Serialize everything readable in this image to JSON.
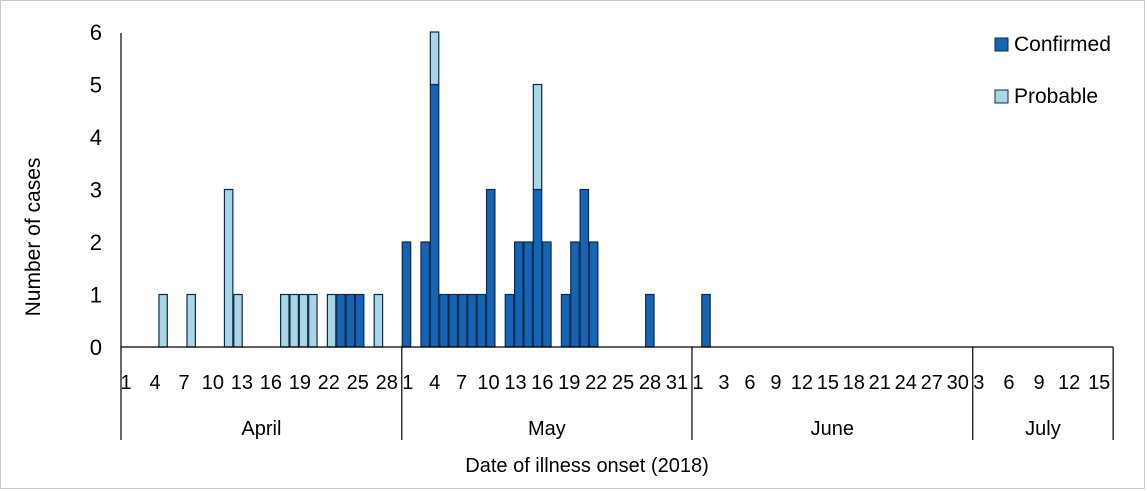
{
  "chart_data": {
    "type": "bar",
    "stacked": true,
    "title": "",
    "xlabel": "Date of illness onset (2018)",
    "ylabel": "Number of cases",
    "ylim": [
      0,
      6
    ],
    "y_ticks": [
      0,
      1,
      2,
      3,
      4,
      5,
      6
    ],
    "grid": false,
    "legend_position": "top-right",
    "colors": {
      "Confirmed": "#1565b6",
      "Probable": "#a9d6e5",
      "outline": "#0d2a4a"
    },
    "months": [
      {
        "name": "April",
        "days": 30,
        "tick_labels": [
          "1",
          "4",
          "7",
          "10",
          "13",
          "16",
          "19",
          "22",
          "25",
          "28"
        ]
      },
      {
        "name": "May",
        "days": 31,
        "tick_labels": [
          "1",
          "4",
          "7",
          "10",
          "13",
          "16",
          "19",
          "22",
          "25",
          "28",
          "31"
        ]
      },
      {
        "name": "June",
        "days": 30,
        "tick_labels": [
          "1",
          "3",
          "6",
          "9",
          "12",
          "15",
          "18",
          "21",
          "24",
          "27",
          "30"
        ]
      },
      {
        "name": "July",
        "days": 15,
        "tick_labels": [
          "3",
          "6",
          "9",
          "12",
          "15"
        ]
      }
    ],
    "series": [
      {
        "name": "Confirmed",
        "points": [
          [
            "Apr 24",
            1
          ],
          [
            "Apr 25",
            1
          ],
          [
            "Apr 26",
            1
          ],
          [
            "May 1",
            2
          ],
          [
            "May 3",
            2
          ],
          [
            "May 4",
            5
          ],
          [
            "May 5",
            1
          ],
          [
            "May 6",
            1
          ],
          [
            "May 7",
            1
          ],
          [
            "May 8",
            1
          ],
          [
            "May 9",
            1
          ],
          [
            "May 10",
            3
          ],
          [
            "May 12",
            1
          ],
          [
            "May 13",
            2
          ],
          [
            "May 14",
            2
          ],
          [
            "May 15",
            3
          ],
          [
            "May 16",
            2
          ],
          [
            "May 18",
            1
          ],
          [
            "May 19",
            2
          ],
          [
            "May 20",
            3
          ],
          [
            "May 21",
            2
          ],
          [
            "May 27",
            1
          ],
          [
            "Jun 2",
            1
          ]
        ]
      },
      {
        "name": "Probable",
        "points": [
          [
            "Apr 5",
            1
          ],
          [
            "Apr 8",
            1
          ],
          [
            "Apr 12",
            3
          ],
          [
            "Apr 13",
            1
          ],
          [
            "Apr 18",
            1
          ],
          [
            "Apr 19",
            1
          ],
          [
            "Apr 20",
            1
          ],
          [
            "Apr 21",
            1
          ],
          [
            "Apr 23",
            1
          ],
          [
            "Apr 28",
            1
          ],
          [
            "May 4",
            1
          ],
          [
            "May 15",
            2
          ]
        ]
      }
    ]
  }
}
